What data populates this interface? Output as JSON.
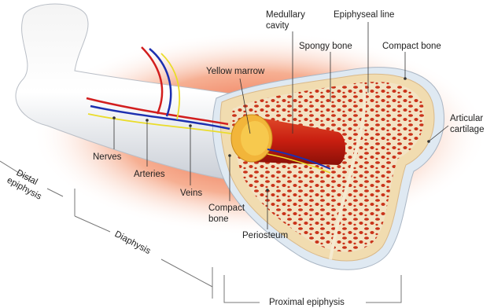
{
  "labels": [
    {
      "lines": [
        "Medullary",
        "cavity"
      ]
    },
    {
      "lines": [
        "Epiphyseal line"
      ]
    },
    {
      "lines": [
        "Yellow marrow"
      ]
    },
    {
      "lines": [
        "Spongy bone"
      ]
    },
    {
      "lines": [
        "Compact bone"
      ]
    },
    {
      "lines": [
        "Articular",
        "cartilage"
      ]
    },
    {
      "lines": [
        "Nerves"
      ]
    },
    {
      "lines": [
        "Arteries"
      ]
    },
    {
      "lines": [
        "Veins"
      ]
    },
    {
      "lines": [
        "Compact",
        "bone"
      ]
    },
    {
      "lines": [
        "Periosteum"
      ]
    },
    {
      "lines": [
        "Distal",
        "epiphysis"
      ]
    },
    {
      "lines": [
        "Diaphysis"
      ]
    },
    {
      "lines": [
        "Proximal epiphysis"
      ]
    }
  ]
}
